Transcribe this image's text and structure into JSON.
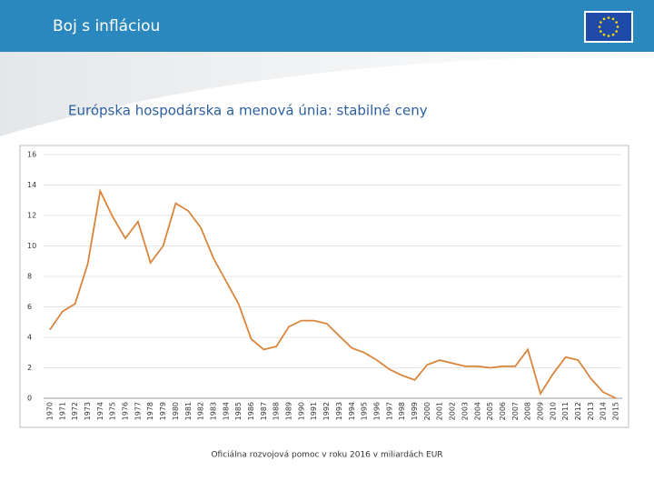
{
  "header": {
    "title": "Boj s infláciou"
  },
  "subtitle": "Európska hospodárska a menová únia: stabilné ceny",
  "caption": "Oficiálna rozvojová pomoc v roku 2016 v miliardách EUR",
  "chart_data": {
    "type": "line",
    "categories": [
      "1970",
      "1971",
      "1972",
      "1973",
      "1974",
      "1975",
      "1976",
      "1977",
      "1978",
      "1979",
      "1980",
      "1981",
      "1982",
      "1983",
      "1984",
      "1985",
      "1986",
      "1987",
      "1988",
      "1989",
      "1990",
      "1991",
      "1992",
      "1993",
      "1994",
      "1995",
      "1996",
      "1997",
      "1998",
      "1999",
      "2000",
      "2001",
      "2002",
      "2003",
      "2004",
      "2005",
      "2006",
      "2007",
      "2008",
      "2009",
      "2010",
      "2011",
      "2012",
      "2013",
      "2014",
      "2015"
    ],
    "values": [
      4.5,
      5.7,
      6.2,
      8.8,
      13.6,
      11.9,
      10.5,
      11.6,
      8.9,
      10.0,
      12.8,
      12.3,
      11.2,
      9.2,
      7.7,
      6.2,
      3.9,
      3.2,
      3.4,
      4.7,
      5.1,
      5.1,
      4.9,
      4.1,
      3.3,
      3.0,
      2.5,
      1.9,
      1.5,
      1.2,
      2.2,
      2.5,
      2.3,
      2.1,
      2.1,
      2.0,
      2.1,
      2.1,
      3.2,
      0.3,
      1.6,
      2.7,
      2.5,
      1.3,
      0.4,
      0.0
    ],
    "color": "#d9853b",
    "ylim": [
      0,
      16
    ],
    "yticks": [
      0,
      2,
      4,
      6,
      8,
      10,
      12,
      14,
      16
    ],
    "grid": true
  }
}
